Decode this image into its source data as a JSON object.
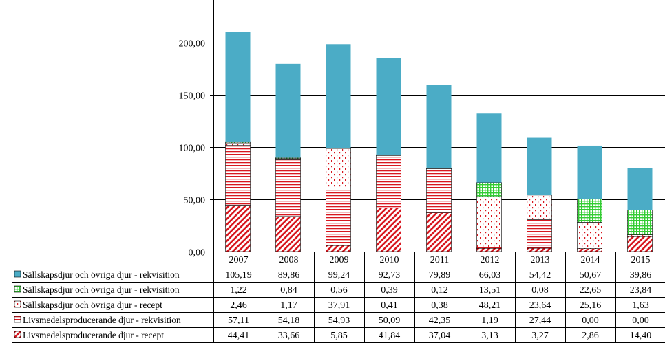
{
  "chart_data": {
    "type": "bar",
    "stacked": true,
    "categories": [
      "2007",
      "2008",
      "2009",
      "2010",
      "2011",
      "2012",
      "2013",
      "2014",
      "2015"
    ],
    "ylim": [
      0,
      240
    ],
    "yticks": [
      "0,00",
      "50,00",
      "100,00",
      "150,00",
      "200,00"
    ],
    "ytick_values": [
      0,
      50,
      100,
      150,
      200
    ],
    "grid": true,
    "legend": "bottom-table",
    "series": [
      {
        "name": "Livsmedelsproducerande djur - recept",
        "color": "#d8171f",
        "pattern": "diagonal",
        "values": [
          44.41,
          33.66,
          5.85,
          41.84,
          37.04,
          3.13,
          3.27,
          2.86,
          14.4
        ],
        "labels": [
          "44,41",
          "33,66",
          "5,85",
          "41,84",
          "37,04",
          "3,13",
          "3,27",
          "2,86",
          "14,40"
        ]
      },
      {
        "name": "Livsmedelsproducerande djur - rekvisition",
        "color": "#d8171f",
        "pattern": "horizontal",
        "values": [
          57.11,
          54.18,
          54.93,
          50.09,
          42.35,
          1.19,
          27.44,
          0.0,
          0.0
        ],
        "labels": [
          "57,11",
          "54,18",
          "54,93",
          "50,09",
          "42,35",
          "1,19",
          "27,44",
          "0,00",
          "0,00"
        ]
      },
      {
        "name": "Sällskapsdjur och övriga djur - recept",
        "color": "#d8171f",
        "pattern": "dots",
        "values": [
          2.46,
          1.17,
          37.91,
          0.41,
          0.38,
          48.21,
          23.64,
          25.16,
          1.63
        ],
        "labels": [
          "2,46",
          "1,17",
          "37,91",
          "0,41",
          "0,38",
          "48,21",
          "23,64",
          "25,16",
          "1,63"
        ]
      },
      {
        "name": "Sällskapsdjur och övriga djur - rekvisition",
        "color": "#33cc33",
        "pattern": "grid",
        "values": [
          1.22,
          0.84,
          0.56,
          0.39,
          0.12,
          13.51,
          0.08,
          22.65,
          23.84
        ],
        "labels": [
          "1,22",
          "0,84",
          "0,56",
          "0,39",
          "0,12",
          "13,51",
          "0,08",
          "22,65",
          "23,84"
        ]
      },
      {
        "name": "Sällskapsdjur och övriga djur - rekvisition",
        "color": "#4bacc6",
        "pattern": "solid",
        "values": [
          105.19,
          89.86,
          99.24,
          92.73,
          79.89,
          66.03,
          54.42,
          50.67,
          39.86
        ],
        "labels": [
          "105,19",
          "89,86",
          "99,24",
          "92,73",
          "79,89",
          "66,03",
          "54,42",
          "50,67",
          "39,86"
        ]
      }
    ]
  }
}
